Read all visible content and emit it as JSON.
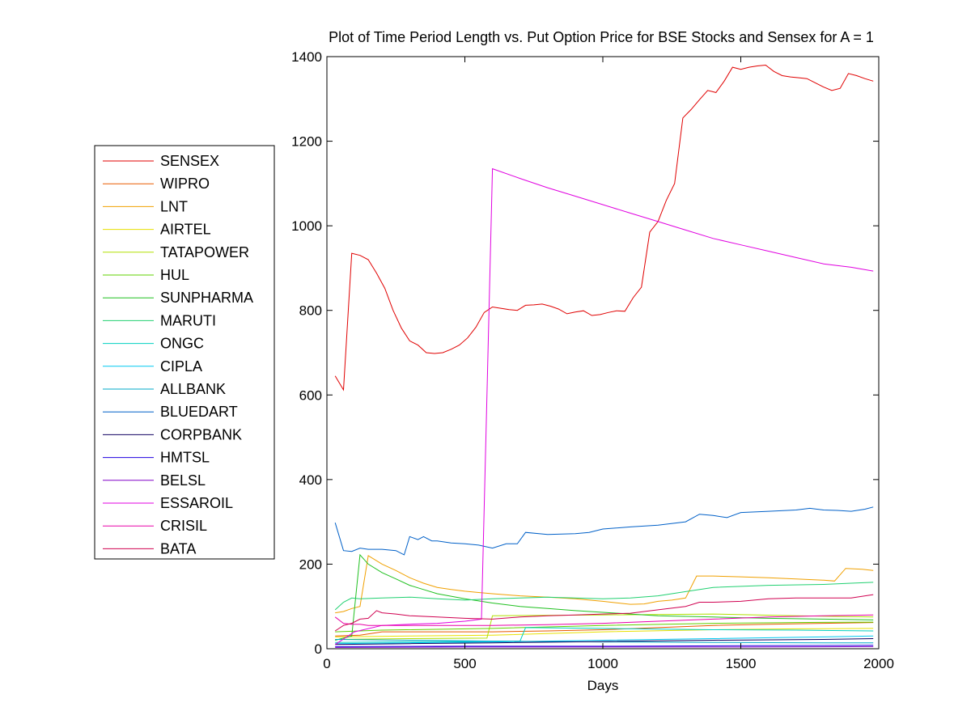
{
  "chart_data": {
    "type": "line",
    "title": "Plot of Time Period Length vs. Put Option Price for BSE Stocks and Sensex for A = 1",
    "xlabel": "Days",
    "ylabel": "",
    "xlim": [
      0,
      2000
    ],
    "ylim": [
      0,
      1400
    ],
    "xticks": [
      0,
      500,
      1000,
      1500,
      2000
    ],
    "yticks": [
      0,
      200,
      400,
      600,
      800,
      1000,
      1200,
      1400
    ],
    "grid": false,
    "legend_position": "left",
    "series": [
      {
        "name": "SENSEX",
        "color": "#e00000",
        "x": [
          30,
          60,
          90,
          120,
          150,
          180,
          210,
          240,
          270,
          300,
          330,
          360,
          390,
          420,
          450,
          480,
          510,
          540,
          570,
          600,
          630,
          660,
          690,
          720,
          750,
          780,
          810,
          840,
          870,
          900,
          930,
          960,
          990,
          1020,
          1050,
          1080,
          1110,
          1140,
          1170,
          1200,
          1230,
          1260,
          1290,
          1320,
          1350,
          1380,
          1410,
          1440,
          1470,
          1500,
          1530,
          1560,
          1590,
          1620,
          1650,
          1680,
          1710,
          1740,
          1770,
          1800,
          1830,
          1860,
          1890,
          1920,
          1950,
          1980
        ],
        "values": [
          645,
          612,
          935,
          930,
          920,
          888,
          852,
          800,
          758,
          728,
          718,
          700,
          698,
          700,
          708,
          718,
          735,
          760,
          795,
          808,
          805,
          802,
          800,
          812,
          813,
          815,
          810,
          803,
          792,
          796,
          799,
          788,
          790,
          795,
          799,
          798,
          830,
          855,
          985,
          1010,
          1060,
          1100,
          1255,
          1275,
          1298,
          1320,
          1315,
          1342,
          1375,
          1370,
          1375,
          1378,
          1380,
          1365,
          1355,
          1352,
          1350,
          1348,
          1338,
          1328,
          1320,
          1325,
          1360,
          1355,
          1348,
          1342
        ]
      },
      {
        "name": "WIPRO",
        "color": "#e85a00",
        "x": [
          30,
          120,
          200,
          400,
          600,
          800,
          1000,
          1200,
          1400,
          1600,
          1800,
          1980
        ],
        "values": [
          30,
          32,
          40,
          40,
          40,
          42,
          45,
          50,
          55,
          58,
          60,
          62
        ]
      },
      {
        "name": "LNT",
        "color": "#f0a000",
        "x": [
          30,
          60,
          90,
          120,
          150,
          200,
          250,
          300,
          350,
          400,
          450,
          500,
          550,
          600,
          700,
          800,
          900,
          1000,
          1100,
          1150,
          1200,
          1250,
          1300,
          1340,
          1400,
          1500,
          1600,
          1700,
          1800,
          1840,
          1880,
          1940,
          1980
        ],
        "values": [
          85,
          88,
          95,
          100,
          220,
          200,
          185,
          168,
          155,
          145,
          140,
          136,
          133,
          130,
          125,
          122,
          118,
          112,
          105,
          106,
          112,
          115,
          120,
          172,
          172,
          170,
          168,
          165,
          162,
          160,
          190,
          188,
          185
        ]
      },
      {
        "name": "AIRTEL",
        "color": "#e8e000",
        "x": [
          30,
          300,
          600,
          1000,
          1400,
          1700,
          1980
        ],
        "values": [
          28,
          30,
          32,
          40,
          45,
          47,
          48
        ]
      },
      {
        "name": "TATAPOWER",
        "color": "#b0e000",
        "x": [
          30,
          300,
          580,
          600,
          1000,
          1400,
          1700,
          1980
        ],
        "values": [
          22,
          24,
          25,
          78,
          80,
          82,
          78,
          75
        ]
      },
      {
        "name": "HUL",
        "color": "#60d000",
        "x": [
          30,
          200,
          600,
          1000,
          1400,
          1700,
          1980
        ],
        "values": [
          40,
          44,
          48,
          55,
          60,
          62,
          63
        ]
      },
      {
        "name": "SUNPHARMA",
        "color": "#20c020",
        "x": [
          30,
          60,
          90,
          120,
          150,
          200,
          250,
          300,
          350,
          400,
          500,
          600,
          700,
          800,
          900,
          1000,
          1100,
          1200,
          1400,
          1600,
          1800,
          1980
        ],
        "values": [
          20,
          25,
          30,
          222,
          200,
          180,
          165,
          150,
          140,
          130,
          118,
          108,
          100,
          95,
          90,
          86,
          82,
          78,
          75,
          72,
          70,
          68
        ]
      },
      {
        "name": "MARUTI",
        "color": "#20d070",
        "x": [
          30,
          60,
          90,
          120,
          200,
          300,
          400,
          500,
          600,
          700,
          800,
          1000,
          1100,
          1200,
          1300,
          1400,
          1600,
          1800,
          1900,
          1980
        ],
        "values": [
          92,
          110,
          120,
          118,
          120,
          122,
          118,
          115,
          118,
          120,
          122,
          118,
          120,
          125,
          135,
          145,
          150,
          152,
          155,
          157
        ]
      },
      {
        "name": "ONGC",
        "color": "#00d0c0",
        "x": [
          30,
          400,
          700,
          720,
          1000,
          1400,
          1700,
          1980
        ],
        "values": [
          15,
          17,
          18,
          50,
          48,
          45,
          44,
          42
        ]
      },
      {
        "name": "CIPLA",
        "color": "#00c8f0",
        "x": [
          30,
          300,
          600,
          1000,
          1400,
          1800,
          1980
        ],
        "values": [
          12,
          14,
          16,
          20,
          24,
          28,
          30
        ]
      },
      {
        "name": "ALLBANK",
        "color": "#00a8c8",
        "x": [
          30,
          300,
          600,
          1000,
          1400,
          1800,
          1980
        ],
        "values": [
          22,
          20,
          18,
          16,
          15,
          14,
          14
        ]
      },
      {
        "name": "BLUEDART",
        "color": "#0060c8",
        "x": [
          30,
          60,
          90,
          120,
          150,
          200,
          250,
          280,
          300,
          330,
          350,
          380,
          400,
          450,
          500,
          550,
          600,
          650,
          690,
          720,
          800,
          900,
          950,
          1000,
          1100,
          1200,
          1300,
          1350,
          1400,
          1450,
          1500,
          1600,
          1700,
          1750,
          1800,
          1850,
          1900,
          1950,
          1980
        ],
        "values": [
          298,
          232,
          230,
          238,
          235,
          235,
          232,
          222,
          265,
          258,
          265,
          255,
          255,
          250,
          248,
          245,
          238,
          248,
          248,
          275,
          270,
          272,
          275,
          283,
          288,
          292,
          300,
          318,
          315,
          310,
          322,
          325,
          328,
          332,
          328,
          327,
          325,
          330,
          335
        ]
      },
      {
        "name": "CORPBANK",
        "color": "#100060",
        "x": [
          30,
          300,
          600,
          1000,
          1400,
          1800,
          1980
        ],
        "values": [
          10,
          12,
          14,
          17,
          20,
          22,
          24
        ]
      },
      {
        "name": "HMTSL",
        "color": "#2000e0",
        "x": [
          30,
          500,
          1000,
          1500,
          1980
        ],
        "values": [
          5,
          6,
          6,
          7,
          8
        ]
      },
      {
        "name": "BELSL",
        "color": "#8000c8",
        "x": [
          30,
          500,
          1000,
          1500,
          1980
        ],
        "values": [
          3,
          4,
          4,
          4,
          5
        ]
      },
      {
        "name": "ESSAROIL",
        "color": "#e000e0",
        "x": [
          30,
          100,
          200,
          300,
          400,
          500,
          560,
          580,
          600,
          700,
          800,
          900,
          1000,
          1100,
          1200,
          1300,
          1400,
          1500,
          1600,
          1700,
          1800,
          1900,
          1980
        ],
        "values": [
          10,
          40,
          55,
          58,
          60,
          65,
          70,
          600,
          1135,
          1112,
          1090,
          1070,
          1050,
          1030,
          1010,
          990,
          970,
          955,
          940,
          925,
          910,
          902,
          893
        ]
      },
      {
        "name": "CRISIL",
        "color": "#e800a8",
        "x": [
          30,
          60,
          90,
          120,
          150,
          200,
          250,
          300,
          400,
          500,
          600,
          800,
          1000,
          1200,
          1400,
          1600,
          1800,
          1980
        ],
        "values": [
          75,
          60,
          58,
          58,
          55,
          55,
          55,
          55,
          55,
          55,
          55,
          57,
          60,
          65,
          70,
          75,
          78,
          80
        ]
      },
      {
        "name": "BATA",
        "color": "#d00050",
        "x": [
          30,
          60,
          90,
          120,
          150,
          180,
          200,
          250,
          300,
          400,
          500,
          600,
          700,
          800,
          900,
          1000,
          1100,
          1200,
          1300,
          1350,
          1400,
          1500,
          1600,
          1700,
          1800,
          1900,
          1980
        ],
        "values": [
          42,
          55,
          60,
          70,
          72,
          90,
          85,
          82,
          78,
          75,
          72,
          70,
          75,
          78,
          80,
          82,
          84,
          92,
          100,
          110,
          110,
          112,
          118,
          120,
          120,
          120,
          128
        ]
      }
    ]
  }
}
